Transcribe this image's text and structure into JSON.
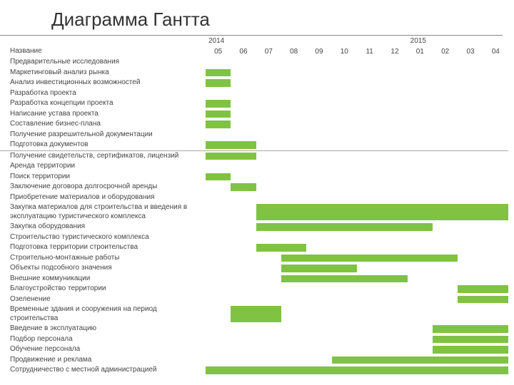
{
  "title": "Диаграмма Гантта",
  "colors": {
    "bar": "#80c343",
    "text": "#444444",
    "title": "#333333",
    "rule": "#888888"
  },
  "timeline": {
    "years": [
      "2014",
      "2015"
    ],
    "year_spans": [
      8,
      4
    ],
    "months": [
      "05",
      "06",
      "07",
      "08",
      "09",
      "10",
      "11",
      "12",
      "01",
      "02",
      "03",
      "04"
    ]
  },
  "section1_header": "Название",
  "section1": [
    {
      "label": "Предварительные исследования",
      "bars": []
    },
    {
      "label": "Маркетинговый анализ рынка",
      "bars": [
        [
          0,
          0
        ]
      ]
    },
    {
      "label": "Анализ инвестиционных возможностей",
      "bars": [
        [
          0,
          0
        ]
      ]
    },
    {
      "label": "Разработка проекта",
      "bars": []
    },
    {
      "label": "Разработка концепции проекта",
      "bars": [
        [
          0,
          0
        ]
      ]
    },
    {
      "label": "Написание устава проекта",
      "bars": [
        [
          0,
          0
        ]
      ]
    },
    {
      "label": "Составление бизнес-плана",
      "bars": [
        [
          0,
          0
        ]
      ]
    },
    {
      "label": "Получение разрешительной документации",
      "bars": []
    },
    {
      "label": "Подготовка документов",
      "bars": [
        [
          0,
          1
        ]
      ]
    }
  ],
  "section2": [
    {
      "label": "Получение свидетельств, сертификатов, лицензий",
      "bars": [
        [
          0,
          1
        ]
      ]
    },
    {
      "label": "Аренда территории",
      "bars": []
    },
    {
      "label": "Поиск территории",
      "bars": [
        [
          0,
          0
        ]
      ]
    },
    {
      "label": "Заключение договора долгосрочной аренды",
      "bars": [
        [
          1,
          1
        ]
      ]
    },
    {
      "label": "Приобретение материалов и оборудования",
      "bars": []
    },
    {
      "label": "Закупка материалов для строительства и введения в эксплуатацию туристического комплекса",
      "bars": [
        [
          2,
          11
        ]
      ]
    },
    {
      "label": "Закупка оборудования",
      "bars": [
        [
          2,
          8
        ]
      ]
    },
    {
      "label": "Строительство туристического комплекса",
      "bars": []
    },
    {
      "label": "Подготовка территории строительства",
      "bars": [
        [
          2,
          3
        ]
      ]
    },
    {
      "label": "Строительно-монтажные работы",
      "bars": [
        [
          3,
          9
        ]
      ]
    },
    {
      "label": "Объекты подсобного значения",
      "bars": [
        [
          3,
          5
        ]
      ]
    },
    {
      "label": "Внешние коммуникации",
      "bars": [
        [
          3,
          7
        ]
      ]
    },
    {
      "label": "Благоустройство территории",
      "bars": [
        [
          10,
          11
        ]
      ]
    },
    {
      "label": "Озеленение",
      "bars": [
        [
          10,
          11
        ]
      ]
    },
    {
      "label": "Временные здания и сооружения на период строительства",
      "bars": [
        [
          1,
          2
        ]
      ]
    },
    {
      "label": "Введение в эксплуатацию",
      "bars": [
        [
          9,
          11
        ]
      ]
    },
    {
      "label": "Подбор персонала",
      "bars": [
        [
          9,
          11
        ]
      ]
    },
    {
      "label": "Обучение персонала",
      "bars": [
        [
          9,
          11
        ]
      ]
    },
    {
      "label": "Продвижение и реклама",
      "bars": [
        [
          5,
          11
        ]
      ]
    },
    {
      "label": "Сотрудничество с местной администрацией",
      "bars": [
        [
          0,
          11
        ]
      ]
    }
  ]
}
